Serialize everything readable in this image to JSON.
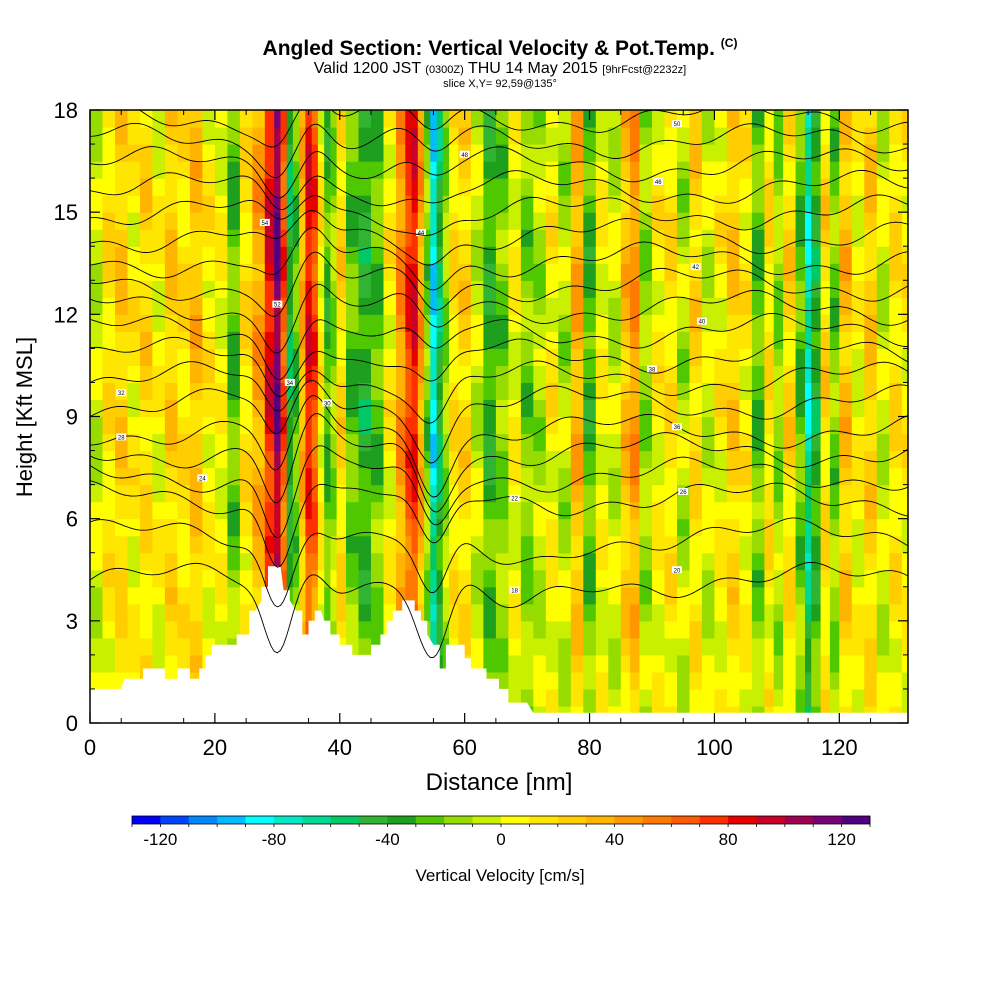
{
  "header": {
    "title": "Angled Section: Vertical Velocity & Pot.Temp.",
    "title_tag": "(C)",
    "valid_prefix": "Valid 1200 JST",
    "valid_zulu": "(0300Z)",
    "valid_date": "THU 14 May 2015",
    "forecast_tag": "[9hrFcst@2232z]",
    "slice": "slice X,Y= 92,59@135°"
  },
  "chart_data": {
    "type": "heatmap",
    "xlabel": "Distance [nm]",
    "ylabel": "Height [Kft MSL]",
    "xlim": [
      0,
      131
    ],
    "ylim": [
      0,
      18
    ],
    "x_ticks": [
      "0",
      "20",
      "40",
      "60",
      "80",
      "100",
      "120"
    ],
    "y_ticks": [
      "0",
      "3",
      "6",
      "9",
      "12",
      "15",
      "18"
    ],
    "x_tick_values": [
      0,
      20,
      40,
      60,
      80,
      100,
      120
    ],
    "y_tick_values": [
      0,
      3,
      6,
      9,
      12,
      15,
      18
    ],
    "colorbar": {
      "label": "Vertical Velocity [cm/s]",
      "range": [
        -130,
        130
      ],
      "step": 10,
      "tick_labels": [
        "-120",
        "-80",
        "-40",
        "0",
        "40",
        "80",
        "120"
      ],
      "tick_values": [
        -120,
        -80,
        -40,
        0,
        40,
        80,
        120
      ],
      "colors": [
        "#0000ff",
        "#0044ff",
        "#0088ff",
        "#00bbff",
        "#00ffff",
        "#00e8c8",
        "#00d896",
        "#00c864",
        "#30b432",
        "#1ea01e",
        "#50c800",
        "#96dc00",
        "#c8f000",
        "#ffff00",
        "#ffe600",
        "#ffcd00",
        "#ffb400",
        "#ff9600",
        "#ff7800",
        "#ff5a00",
        "#ff3000",
        "#e60000",
        "#c80028",
        "#a00050",
        "#780078",
        "#500080"
      ]
    },
    "columns": [
      {
        "x": 1,
        "w": -5
      },
      {
        "x": 3,
        "w": 15
      },
      {
        "x": 5,
        "w": 25
      },
      {
        "x": 7,
        "w": 10
      },
      {
        "x": 9,
        "w": 20
      },
      {
        "x": 11,
        "w": 5
      },
      {
        "x": 13,
        "w": 25
      },
      {
        "x": 15,
        "w": 15
      },
      {
        "x": 17,
        "w": 30
      },
      {
        "x": 19,
        "w": 10
      },
      {
        "x": 21,
        "w": 5
      },
      {
        "x": 23,
        "w": -25
      },
      {
        "x": 25,
        "w": 15
      },
      {
        "x": 27,
        "w": 40
      },
      {
        "x": 29,
        "w": 85
      },
      {
        "x": 30,
        "w": 115
      },
      {
        "x": 31,
        "w": 70
      },
      {
        "x": 32,
        "w": -45
      },
      {
        "x": 33,
        "w": -25
      },
      {
        "x": 34,
        "w": 35
      },
      {
        "x": 35,
        "w": 85
      },
      {
        "x": 36,
        "w": 70
      },
      {
        "x": 37,
        "w": 10
      },
      {
        "x": 38,
        "w": -30
      },
      {
        "x": 39,
        "w": -15
      },
      {
        "x": 40,
        "w": 20
      },
      {
        "x": 42,
        "w": -25
      },
      {
        "x": 44,
        "w": -40
      },
      {
        "x": 46,
        "w": -25
      },
      {
        "x": 48,
        "w": 10
      },
      {
        "x": 50,
        "w": 45
      },
      {
        "x": 51,
        "w": 75
      },
      {
        "x": 52,
        "w": 85
      },
      {
        "x": 53,
        "w": 40
      },
      {
        "x": 54,
        "w": -20
      },
      {
        "x": 55,
        "w": -85
      },
      {
        "x": 56,
        "w": -50
      },
      {
        "x": 57,
        "w": -15
      },
      {
        "x": 58,
        "w": 15
      },
      {
        "x": 60,
        "w": 20
      },
      {
        "x": 62,
        "w": -5
      },
      {
        "x": 64,
        "w": -35
      },
      {
        "x": 66,
        "w": -20
      },
      {
        "x": 68,
        "w": 5
      },
      {
        "x": 70,
        "w": -20
      },
      {
        "x": 72,
        "w": -10
      },
      {
        "x": 74,
        "w": 10
      },
      {
        "x": 76,
        "w": -10
      },
      {
        "x": 78,
        "w": 35
      },
      {
        "x": 80,
        "w": -30
      },
      {
        "x": 82,
        "w": 5
      },
      {
        "x": 84,
        "w": -5
      },
      {
        "x": 86,
        "w": 30
      },
      {
        "x": 87,
        "w": 45
      },
      {
        "x": 89,
        "w": -15
      },
      {
        "x": 91,
        "w": 10
      },
      {
        "x": 93,
        "w": 15
      },
      {
        "x": 95,
        "w": -10
      },
      {
        "x": 97,
        "w": 20
      },
      {
        "x": 99,
        "w": -5
      },
      {
        "x": 101,
        "w": 10
      },
      {
        "x": 103,
        "w": 25
      },
      {
        "x": 105,
        "w": 10
      },
      {
        "x": 107,
        "w": -25
      },
      {
        "x": 109,
        "w": 15
      },
      {
        "x": 110,
        "w": -15
      },
      {
        "x": 112,
        "w": 20
      },
      {
        "x": 114,
        "w": -25
      },
      {
        "x": 115,
        "w": -75
      },
      {
        "x": 116,
        "w": -40
      },
      {
        "x": 118,
        "w": 20
      },
      {
        "x": 119,
        "w": -20
      },
      {
        "x": 121,
        "w": 30
      },
      {
        "x": 123,
        "w": 5
      },
      {
        "x": 125,
        "w": 25
      },
      {
        "x": 127,
        "w": -5
      },
      {
        "x": 129,
        "w": 15
      },
      {
        "x": 131,
        "w": 10
      }
    ],
    "terrain": [
      [
        0,
        1.0
      ],
      [
        5,
        1.0
      ],
      [
        5.5,
        1.3
      ],
      [
        8.5,
        1.3
      ],
      [
        8.5,
        1.6
      ],
      [
        12,
        1.6
      ],
      [
        12,
        1.3
      ],
      [
        14,
        1.3
      ],
      [
        14,
        1.6
      ],
      [
        16,
        1.6
      ],
      [
        16,
        1.3
      ],
      [
        17.5,
        1.3
      ],
      [
        17.5,
        1.6
      ],
      [
        18.5,
        1.6
      ],
      [
        18.5,
        2.0
      ],
      [
        19.5,
        2.0
      ],
      [
        19.5,
        2.3
      ],
      [
        23.5,
        2.3
      ],
      [
        23.5,
        2.6
      ],
      [
        25.5,
        2.6
      ],
      [
        25.5,
        3.3
      ],
      [
        26.5,
        3.3
      ],
      [
        27.5,
        3.6
      ],
      [
        27.5,
        4.0
      ],
      [
        28.5,
        4.0
      ],
      [
        28.5,
        4.6
      ],
      [
        30.5,
        4.6
      ],
      [
        31,
        3.9
      ],
      [
        32,
        3.9
      ],
      [
        32,
        3.6
      ],
      [
        33,
        3.3
      ],
      [
        34,
        3.3
      ],
      [
        34,
        2.6
      ],
      [
        35,
        2.6
      ],
      [
        35,
        3.0
      ],
      [
        36,
        3.0
      ],
      [
        36,
        3.3
      ],
      [
        37,
        3.3
      ],
      [
        37.5,
        3.0
      ],
      [
        38.5,
        3.0
      ],
      [
        38.5,
        2.6
      ],
      [
        40,
        2.6
      ],
      [
        40,
        2.3
      ],
      [
        42,
        2.3
      ],
      [
        42,
        2.0
      ],
      [
        45,
        2.0
      ],
      [
        45,
        2.3
      ],
      [
        46.5,
        2.3
      ],
      [
        46.5,
        2.6
      ],
      [
        47.5,
        2.6
      ],
      [
        47.5,
        3.0
      ],
      [
        48.5,
        3.0
      ],
      [
        48.5,
        3.3
      ],
      [
        50,
        3.3
      ],
      [
        50,
        3.6
      ],
      [
        52,
        3.6
      ],
      [
        52,
        3.3
      ],
      [
        53,
        3.3
      ],
      [
        53,
        3.0
      ],
      [
        54,
        3.0
      ],
      [
        54,
        2.6
      ],
      [
        55,
        2.3
      ],
      [
        56,
        2.3
      ],
      [
        56,
        1.6
      ],
      [
        57,
        1.6
      ],
      [
        57,
        2.3
      ],
      [
        60,
        2.3
      ],
      [
        60,
        1.9
      ],
      [
        61,
        1.9
      ],
      [
        61,
        1.6
      ],
      [
        63.5,
        1.6
      ],
      [
        63.5,
        1.3
      ],
      [
        65.5,
        1.3
      ],
      [
        65.5,
        1.0
      ],
      [
        67,
        1.0
      ],
      [
        67,
        0.6
      ],
      [
        70,
        0.6
      ],
      [
        71,
        0.3
      ],
      [
        131,
        0.3
      ]
    ],
    "isentropes": [
      {
        "label": "18",
        "y0": 4.2,
        "lx": 68,
        "ly": 3.9
      },
      {
        "label": "20",
        "y0": 5.5,
        "lx": 94,
        "ly": 4.5
      },
      {
        "label": "22",
        "y0": 6.6,
        "lx": 68,
        "ly": 6.6
      },
      {
        "label": "24",
        "y0": 7.3,
        "lx": 18,
        "ly": 7.2
      },
      {
        "label": "26",
        "y0": 8.0,
        "lx": 95,
        "ly": 6.8
      },
      {
        "label": "28",
        "y0": 8.6,
        "lx": 5,
        "ly": 8.4
      },
      {
        "label": "30",
        "y0": 9.4,
        "lx": 38,
        "ly": 9.4
      },
      {
        "label": "32",
        "y0": 10.1,
        "lx": 5,
        "ly": 9.7
      },
      {
        "label": "34",
        "y0": 10.8,
        "lx": 32,
        "ly": 10.0
      },
      {
        "label": "36",
        "y0": 11.5,
        "lx": 94,
        "ly": 8.7
      },
      {
        "label": "38",
        "y0": 12.2,
        "lx": 90,
        "ly": 10.4
      },
      {
        "label": "40",
        "y0": 12.9,
        "lx": 98,
        "ly": 11.8
      },
      {
        "label": "42",
        "y0": 13.6,
        "lx": 97,
        "ly": 13.4
      },
      {
        "label": "44",
        "y0": 14.3,
        "lx": 53,
        "ly": 14.4
      },
      {
        "label": "46",
        "y0": 15.0,
        "lx": 91,
        "ly": 15.9
      },
      {
        "label": "48",
        "y0": 15.7,
        "lx": 60,
        "ly": 16.7
      },
      {
        "label": "50",
        "y0": 16.4,
        "lx": 94,
        "ly": 17.6
      },
      {
        "label": "52",
        "y0": 17.1,
        "lx": 30,
        "ly": 12.3
      },
      {
        "label": "54",
        "y0": 17.8,
        "lx": 28,
        "ly": 14.7
      }
    ]
  }
}
